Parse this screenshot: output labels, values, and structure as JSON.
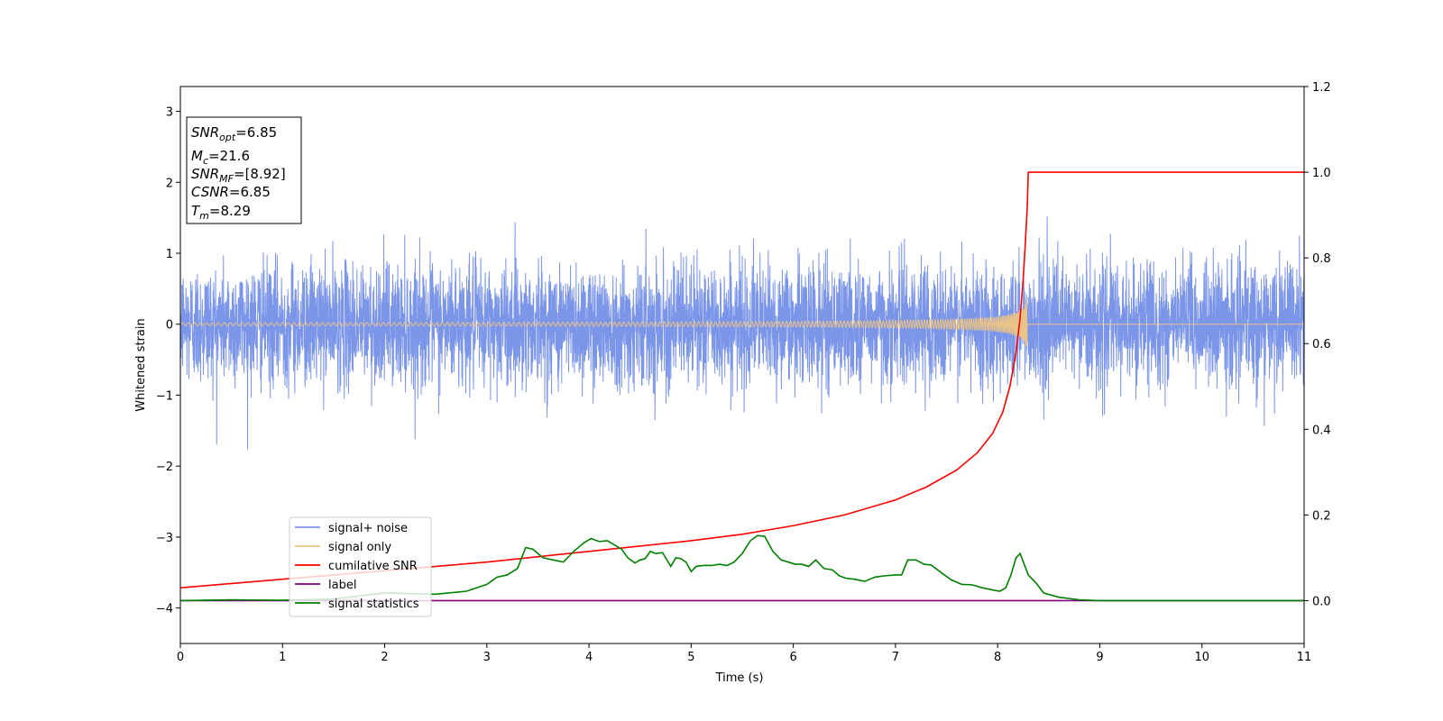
{
  "chart_data": {
    "type": "line",
    "xlabel": "Time (s)",
    "ylabel": "Whitened strain",
    "xlim": [
      0,
      11
    ],
    "ylim": [
      -4.5,
      3.35
    ],
    "y2lim": [
      -0.1,
      1.2
    ],
    "x_ticks": [
      "0",
      "1",
      "2",
      "3",
      "4",
      "5",
      "6",
      "7",
      "8",
      "9",
      "10",
      "11"
    ],
    "y_ticks": [
      "3",
      "2",
      "1",
      "0",
      "−1",
      "−2",
      "−3",
      "−4"
    ],
    "y_tick_values": [
      3,
      2,
      1,
      0,
      -1,
      -2,
      -3,
      -4
    ],
    "y2_ticks": [
      "1.2",
      "1.0",
      "0.8",
      "0.6",
      "0.4",
      "0.2",
      "0.0"
    ],
    "y2_tick_values": [
      1.2,
      1.0,
      0.8,
      0.6,
      0.4,
      0.2,
      0.0
    ],
    "grid": false,
    "legend_position": "lower-left",
    "series": [
      {
        "name": "signal+ noise",
        "axis": "left",
        "color": "#7b95e9",
        "style": "noise",
        "noise_sigma": 0.42,
        "noise_peak": 1.9
      },
      {
        "name": "signal only",
        "axis": "left",
        "color": "#f4c67e",
        "style": "chirp",
        "chirp_merger_time": 8.29,
        "chirp_peak_amplitude": 0.68
      },
      {
        "name": "cumilative SNR",
        "axis": "right",
        "color": "#ff0000",
        "x": [
          0,
          1,
          2,
          3,
          4,
          5,
          5.5,
          6,
          6.5,
          7,
          7.3,
          7.6,
          7.8,
          7.95,
          8.05,
          8.12,
          8.18,
          8.22,
          8.25,
          8.27,
          8.29,
          8.3,
          9,
          10,
          11
        ],
        "values": [
          0.03,
          0.05,
          0.07,
          0.09,
          0.115,
          0.14,
          0.155,
          0.175,
          0.2,
          0.235,
          0.265,
          0.305,
          0.345,
          0.39,
          0.44,
          0.5,
          0.58,
          0.66,
          0.75,
          0.83,
          0.92,
          1.0,
          1.0,
          1.0,
          1.0
        ]
      },
      {
        "name": "label",
        "axis": "right",
        "color": "#800080",
        "x": [
          0,
          11
        ],
        "values": [
          0,
          0
        ]
      },
      {
        "name": "signal statistics",
        "axis": "right",
        "color": "#008000",
        "x": [
          0,
          0.5,
          1,
          1.5,
          2,
          2.5,
          2.8,
          2.9,
          3.0,
          3.1,
          3.2,
          3.3,
          3.38,
          3.45,
          3.55,
          3.65,
          3.75,
          3.85,
          3.95,
          4.02,
          4.1,
          4.18,
          4.25,
          4.32,
          4.38,
          4.45,
          4.5,
          4.55,
          4.6,
          4.65,
          4.72,
          4.8,
          4.85,
          4.9,
          4.95,
          5.0,
          5.05,
          5.12,
          5.2,
          5.28,
          5.35,
          5.42,
          5.5,
          5.58,
          5.65,
          5.72,
          5.8,
          5.88,
          5.95,
          6.02,
          6.08,
          6.15,
          6.22,
          6.3,
          6.38,
          6.45,
          6.52,
          6.6,
          6.7,
          6.8,
          6.9,
          7.0,
          7.06,
          7.12,
          7.2,
          7.28,
          7.35,
          7.45,
          7.55,
          7.65,
          7.75,
          7.85,
          7.95,
          8.02,
          8.08,
          8.13,
          8.18,
          8.22,
          8.3,
          8.38,
          8.45,
          8.6,
          8.8,
          9.0,
          10,
          11
        ],
        "values": [
          0.0,
          0.002,
          0.001,
          0.004,
          0.018,
          0.015,
          0.022,
          0.03,
          0.038,
          0.055,
          0.06,
          0.075,
          0.124,
          0.12,
          0.1,
          0.095,
          0.09,
          0.115,
          0.135,
          0.145,
          0.138,
          0.14,
          0.13,
          0.12,
          0.1,
          0.088,
          0.095,
          0.098,
          0.115,
          0.11,
          0.112,
          0.08,
          0.1,
          0.098,
          0.09,
          0.068,
          0.08,
          0.082,
          0.082,
          0.085,
          0.082,
          0.09,
          0.11,
          0.14,
          0.152,
          0.15,
          0.115,
          0.095,
          0.09,
          0.085,
          0.085,
          0.08,
          0.095,
          0.075,
          0.072,
          0.058,
          0.052,
          0.05,
          0.045,
          0.055,
          0.058,
          0.06,
          0.06,
          0.095,
          0.095,
          0.085,
          0.083,
          0.065,
          0.048,
          0.038,
          0.037,
          0.03,
          0.025,
          0.022,
          0.03,
          0.06,
          0.1,
          0.11,
          0.06,
          0.04,
          0.018,
          0.008,
          0.002,
          0.0,
          0.0,
          0.0
        ]
      }
    ],
    "info_box": [
      {
        "base": "SNR",
        "sub": "opt",
        "value": "=6.85"
      },
      {
        "base": "M",
        "sub": "c",
        "value": "=21.6"
      },
      {
        "base": "SNR",
        "sub": "MF",
        "value": "=[8.92]"
      },
      {
        "base": "CSNR",
        "sub": "",
        "value": "=6.85"
      },
      {
        "base": "T",
        "sub": "m",
        "value": "=8.29"
      }
    ]
  }
}
